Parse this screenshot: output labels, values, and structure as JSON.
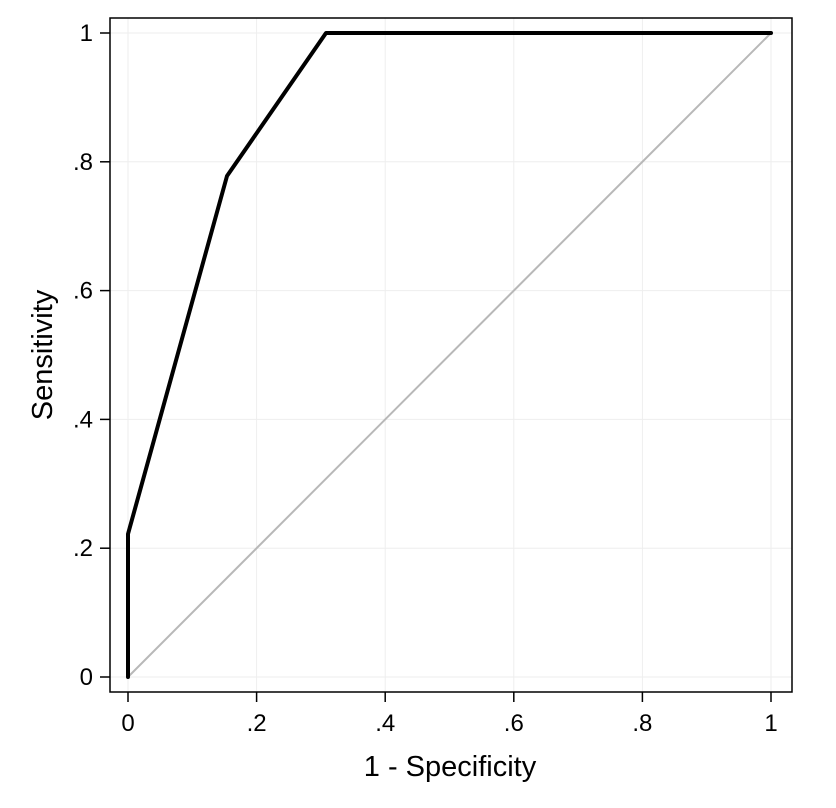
{
  "chart_data": {
    "type": "line",
    "xlabel": "1 - Specificity",
    "ylabel": "Sensitivity",
    "xlim": [
      0,
      1
    ],
    "ylim": [
      0,
      1
    ],
    "grid": true,
    "x_ticks": [
      {
        "value": 0,
        "label": "0"
      },
      {
        "value": 0.2,
        "label": ".2"
      },
      {
        "value": 0.4,
        "label": ".4"
      },
      {
        "value": 0.6,
        "label": ".6"
      },
      {
        "value": 0.8,
        "label": ".8"
      },
      {
        "value": 1,
        "label": "1"
      }
    ],
    "y_ticks": [
      {
        "value": 0,
        "label": "0"
      },
      {
        "value": 0.2,
        "label": ".2"
      },
      {
        "value": 0.4,
        "label": ".4"
      },
      {
        "value": 0.6,
        "label": ".6"
      },
      {
        "value": 0.8,
        "label": ".8"
      },
      {
        "value": 1,
        "label": "1"
      }
    ],
    "series": [
      {
        "role": "roc-curve",
        "color": "#000000",
        "x": [
          0,
          0,
          0.154,
          0.308,
          1
        ],
        "y": [
          0,
          0.222,
          0.778,
          1,
          1
        ]
      },
      {
        "role": "reference-line",
        "color": "#b8b8b8",
        "x": [
          0,
          1
        ],
        "y": [
          0,
          1
        ]
      }
    ]
  }
}
